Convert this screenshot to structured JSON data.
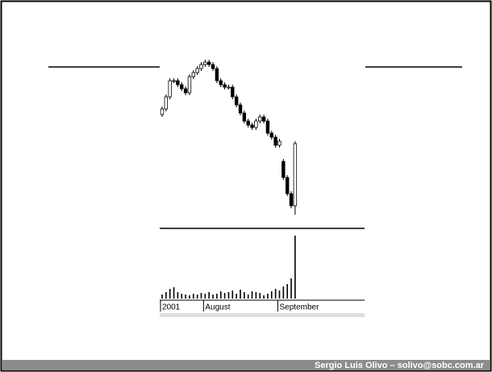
{
  "chart_data": {
    "type": "candlestick",
    "categories": [
      "2001",
      null,
      null,
      null,
      null,
      null,
      null,
      null,
      null,
      null,
      null,
      "August",
      null,
      null,
      null,
      null,
      null,
      null,
      null,
      null,
      null,
      null,
      null,
      null,
      null,
      null,
      null,
      null,
      null,
      null,
      "September",
      null,
      null,
      null,
      null
    ],
    "open": [
      64,
      67.5,
      75,
      85,
      85,
      82.5,
      80,
      77.5,
      87.5,
      90,
      92.5,
      95,
      96.5,
      95,
      92.5,
      85,
      82.5,
      81,
      81,
      75,
      70,
      65,
      60,
      57.5,
      56,
      60,
      62.5,
      60,
      52.5,
      50,
      45,
      35,
      25,
      15,
      7.5
    ],
    "high": [
      69,
      76.5,
      86.5,
      86.5,
      86.5,
      84,
      81.5,
      89,
      91.5,
      94,
      96.5,
      98,
      98,
      96.5,
      94,
      86.5,
      84,
      82.5,
      82.5,
      76.5,
      71.5,
      66.5,
      61.5,
      59,
      61.5,
      64,
      64,
      61.5,
      54,
      51.5,
      49,
      36.5,
      26.5,
      16.5,
      47.5
    ],
    "low": [
      62.5,
      66,
      73.5,
      83.5,
      81,
      78.5,
      76,
      76,
      86,
      88.5,
      91,
      93.5,
      93.5,
      91,
      83.5,
      81,
      79.5,
      79.5,
      73.5,
      68.5,
      63.5,
      58.5,
      56,
      54.5,
      54.5,
      58.5,
      58.5,
      51,
      48.5,
      43.5,
      43.5,
      23.5,
      13.5,
      6,
      2
    ],
    "close": [
      67.5,
      75,
      85,
      85,
      82.5,
      80,
      77.5,
      87.5,
      90,
      92.5,
      95,
      96.5,
      95,
      92.5,
      85,
      82.5,
      81,
      81,
      75,
      70,
      65,
      60,
      57.5,
      56,
      60,
      62.5,
      60,
      52.5,
      50,
      45,
      47.5,
      25,
      15,
      7.5,
      46
    ],
    "volume": [
      5,
      8,
      12,
      14,
      8,
      6,
      5,
      4,
      6,
      5,
      7,
      6,
      8,
      5,
      6,
      9,
      7,
      8,
      10,
      6,
      11,
      8,
      5,
      9,
      8,
      7,
      4,
      6,
      9,
      12,
      10,
      15,
      18,
      25,
      78
    ],
    "ylim": [
      0,
      100
    ],
    "volume_ylim": [
      0,
      80
    ],
    "up_color": "#ffffff",
    "down_color": "#000000"
  },
  "footer": "Sergio Luis Olivo – solivo@sobc.com.ar"
}
